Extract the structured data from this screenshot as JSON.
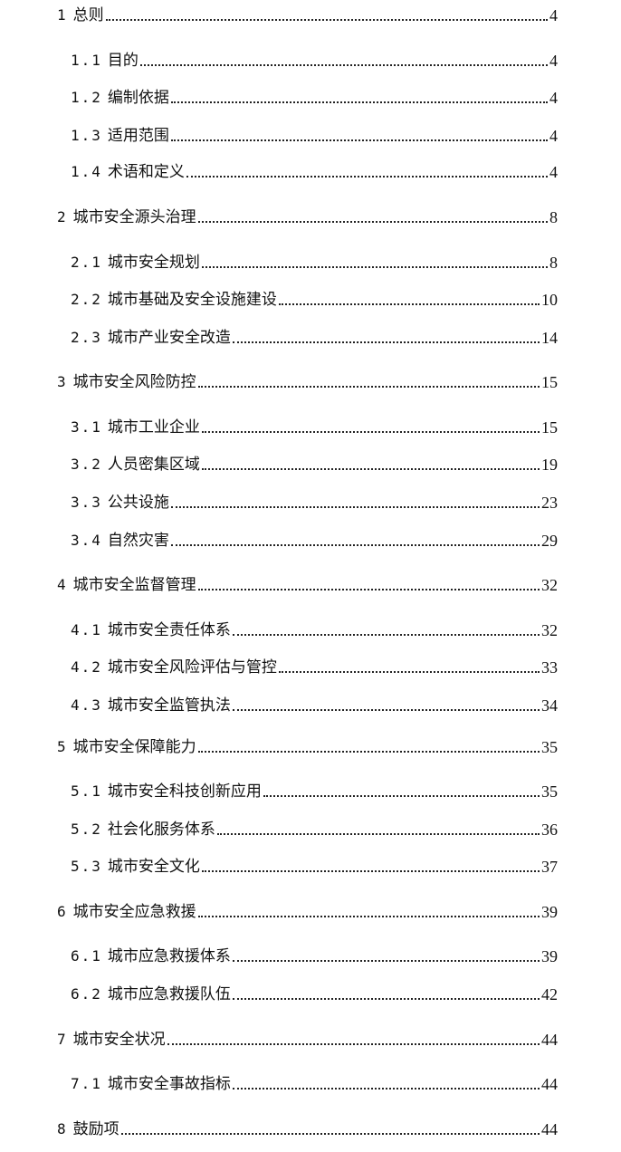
{
  "toc": [
    {
      "num": "1",
      "title": "总则",
      "page": "4",
      "level": 1
    },
    {
      "num": "1.1",
      "title": "目的",
      "page": "4",
      "level": 2
    },
    {
      "num": "1.2",
      "title": "编制依据",
      "page": "4",
      "level": 2
    },
    {
      "num": "1.3",
      "title": "适用范围",
      "page": "4",
      "level": 2
    },
    {
      "num": "1.4",
      "title": "术语和定义",
      "page": "4",
      "level": 2
    },
    {
      "num": "2",
      "title": "城市安全源头治理",
      "page": "8",
      "level": 1
    },
    {
      "num": "2.1",
      "title": "城市安全规划",
      "page": "8",
      "level": 2
    },
    {
      "num": "2.2",
      "title": "城市基础及安全设施建设",
      "page": "10",
      "level": 2
    },
    {
      "num": "2.3",
      "title": "城市产业安全改造",
      "page": "14",
      "level": 2
    },
    {
      "num": "3",
      "title": "城市安全风险防控",
      "page": "15",
      "level": 1
    },
    {
      "num": "3.1",
      "title": "城市工业企业",
      "page": "15",
      "level": 2
    },
    {
      "num": "3.2",
      "title": "人员密集区域",
      "page": "19",
      "level": 2
    },
    {
      "num": "3.3",
      "title": "公共设施",
      "page": "23",
      "level": 2
    },
    {
      "num": "3.4",
      "title": "自然灾害",
      "page": "29",
      "level": 2
    },
    {
      "num": "4",
      "title": "城市安全监督管理",
      "page": "32",
      "level": 1
    },
    {
      "num": "4.1",
      "title": "城市安全责任体系",
      "page": "32",
      "level": 2
    },
    {
      "num": "4.2",
      "title": "城市安全风险评估与管控",
      "page": "33",
      "level": 2
    },
    {
      "num": "4.3",
      "title": "城市安全监管执法",
      "page": "34",
      "level": 2
    },
    {
      "num": "5",
      "title": "城市安全保障能力",
      "page": "35",
      "level": 1
    },
    {
      "num": "5.1",
      "title": "城市安全科技创新应用",
      "page": "35",
      "level": 2
    },
    {
      "num": "5.2",
      "title": "社会化服务体系",
      "page": "36",
      "level": 2
    },
    {
      "num": "5.3",
      "title": "城市安全文化",
      "page": "37",
      "level": 2
    },
    {
      "num": "6",
      "title": "城市安全应急救援",
      "page": "39",
      "level": 1
    },
    {
      "num": "6.1",
      "title": "城市应急救援体系",
      "page": "39",
      "level": 2
    },
    {
      "num": "6.2",
      "title": "城市应急救援队伍",
      "page": "42",
      "level": 2
    },
    {
      "num": "7",
      "title": "城市安全状况",
      "page": "44",
      "level": 1
    },
    {
      "num": "7.1",
      "title": "城市安全事故指标",
      "page": "44",
      "level": 2
    },
    {
      "num": "8",
      "title": "鼓励项",
      "page": "44",
      "level": 1
    }
  ]
}
